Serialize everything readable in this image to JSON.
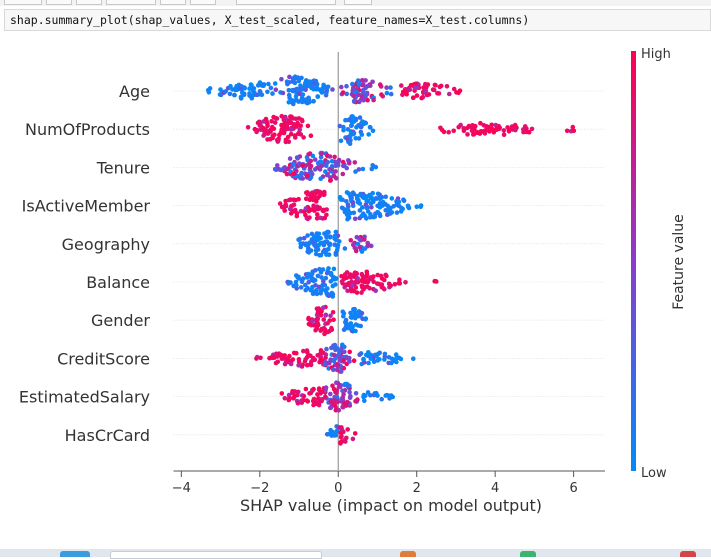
{
  "notebook": {
    "code": "shap.summary_plot(shap_values, X_test_scaled, feature_names=X_test.columns)"
  },
  "colors": {
    "high": "#ff0051",
    "mid": "#8b3ccc",
    "low": "#008bfb",
    "axis": "#555555",
    "text": "#333333"
  },
  "chart_data": {
    "type": "scatter",
    "subtype": "shap-beeswarm",
    "xlabel": "SHAP value (impact on model output)",
    "xlim": [
      -4.2,
      6.8
    ],
    "xticks": [
      -4,
      -2,
      0,
      2,
      4,
      6
    ],
    "xtick_labels": [
      "−4",
      "−2",
      "0",
      "2",
      "4",
      "6"
    ],
    "colorbar": {
      "label": "Feature value",
      "high_label": "High",
      "low_label": "Low"
    },
    "features": [
      {
        "name": "Age",
        "clusters": [
          {
            "range": [
              -3.5,
              -1.6
            ],
            "peak": -2.1,
            "color": "low",
            "width": 0.55
          },
          {
            "range": [
              -1.6,
              0.0
            ],
            "peak": -1.2,
            "color": "low",
            "width": 1.0
          },
          {
            "range": [
              0.0,
              1.5
            ],
            "peak": 0.5,
            "color": "mid",
            "width": 0.75
          },
          {
            "range": [
              1.5,
              3.4
            ],
            "peak": 2.0,
            "color": "high",
            "width": 0.45
          }
        ]
      },
      {
        "name": "NumOfProducts",
        "clusters": [
          {
            "range": [
              -2.4,
              -0.6
            ],
            "peak": -1.4,
            "color": "high",
            "width": 0.9
          },
          {
            "range": [
              0.0,
              0.9
            ],
            "peak": 0.3,
            "color": "low",
            "width": 1.0
          },
          {
            "range": [
              2.4,
              5.5
            ],
            "peak": 3.8,
            "color": "high",
            "width": 0.35
          },
          {
            "range": [
              5.6,
              6.3
            ],
            "peak": 6.0,
            "color": "high",
            "width": 0.1
          }
        ]
      },
      {
        "name": "Tenure",
        "clusters": [
          {
            "range": [
              -1.7,
              0.5
            ],
            "peak": -0.5,
            "color": "mid",
            "width": 1.0
          },
          {
            "range": [
              0.5,
              1.0
            ],
            "peak": 0.7,
            "color": "low",
            "width": 0.15
          }
        ]
      },
      {
        "name": "IsActiveMember",
        "clusters": [
          {
            "range": [
              -1.6,
              -0.2
            ],
            "peak": -0.5,
            "color": "high",
            "width": 1.0
          },
          {
            "range": [
              0.0,
              2.2
            ],
            "peak": 0.3,
            "color": "low",
            "width": 0.95
          }
        ]
      },
      {
        "name": "Geography",
        "clusters": [
          {
            "range": [
              -1.2,
              0.2
            ],
            "peak": -0.3,
            "color": "low",
            "width": 0.9
          },
          {
            "range": [
              0.2,
              0.9
            ],
            "peak": 0.5,
            "color": "mid",
            "width": 0.55
          }
        ]
      },
      {
        "name": "Balance",
        "clusters": [
          {
            "range": [
              -1.4,
              0.0
            ],
            "peak": -0.2,
            "color": "low",
            "width": 1.0
          },
          {
            "range": [
              0.0,
              1.8
            ],
            "peak": 0.2,
            "color": "high",
            "width": 0.8
          },
          {
            "range": [
              2.4,
              2.6
            ],
            "peak": 2.5,
            "color": "high",
            "width": 0.08
          }
        ]
      },
      {
        "name": "Gender",
        "clusters": [
          {
            "range": [
              -0.9,
              -0.1
            ],
            "peak": -0.3,
            "color": "high",
            "width": 1.0
          },
          {
            "range": [
              0.05,
              0.8
            ],
            "peak": 0.2,
            "color": "low",
            "width": 0.9
          }
        ]
      },
      {
        "name": "CreditScore",
        "clusters": [
          {
            "range": [
              -2.2,
              -0.3
            ],
            "peak": -0.5,
            "color": "high",
            "width": 0.55
          },
          {
            "range": [
              -0.5,
              0.5
            ],
            "peak": 0.0,
            "color": "mid",
            "width": 1.0
          },
          {
            "range": [
              0.5,
              2.0
            ],
            "peak": 0.7,
            "color": "low",
            "width": 0.4
          }
        ]
      },
      {
        "name": "EstimatedSalary",
        "clusters": [
          {
            "range": [
              -1.8,
              -0.3
            ],
            "peak": -0.5,
            "color": "high",
            "width": 0.55
          },
          {
            "range": [
              -0.5,
              0.6
            ],
            "peak": 0.0,
            "color": "mid",
            "width": 1.0
          },
          {
            "range": [
              0.6,
              1.6
            ],
            "peak": 0.8,
            "color": "low",
            "width": 0.3
          }
        ]
      },
      {
        "name": "HasCrCard",
        "clusters": [
          {
            "range": [
              -0.3,
              0.0
            ],
            "peak": -0.05,
            "color": "low",
            "width": 0.55
          },
          {
            "range": [
              0.0,
              0.5
            ],
            "peak": 0.05,
            "color": "high",
            "width": 0.6
          }
        ]
      }
    ]
  }
}
